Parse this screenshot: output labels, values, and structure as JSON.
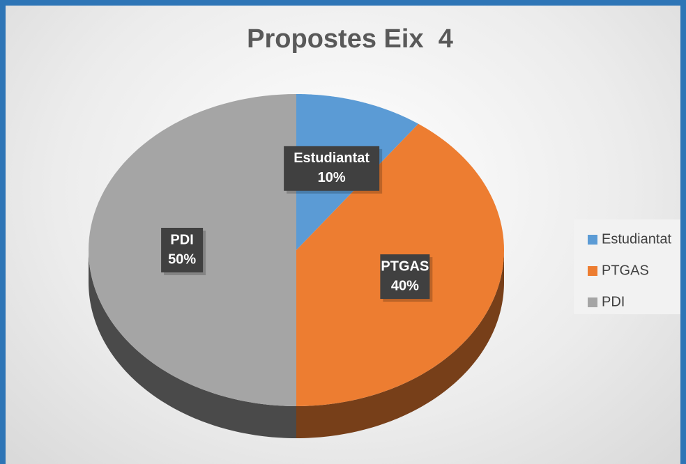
{
  "chart_data": {
    "type": "pie",
    "title": "Propostes Eix  4",
    "categories": [
      "Estudiantat",
      "PTGAS",
      "PDI"
    ],
    "values": [
      10,
      40,
      50
    ],
    "value_labels": [
      "10%",
      "40%",
      "50%"
    ],
    "colors": [
      "#5b9bd5",
      "#ed7d31",
      "#a5a5a5"
    ],
    "legend": "right"
  }
}
